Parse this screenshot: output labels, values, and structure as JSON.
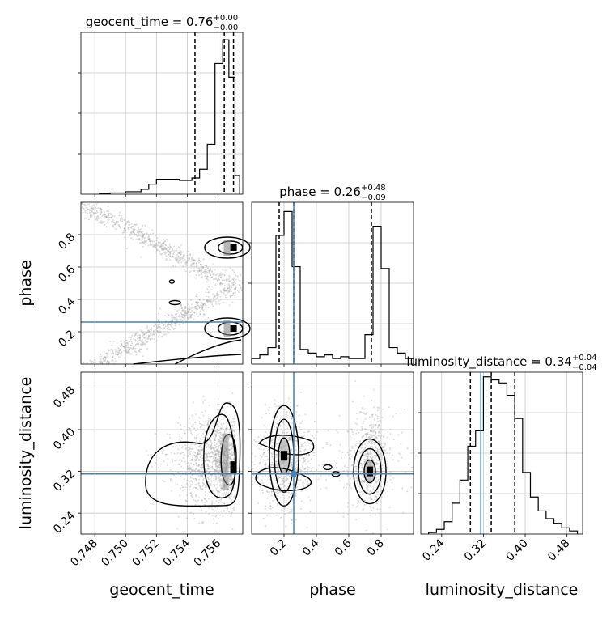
{
  "chart_data": {
    "type": "corner",
    "parameters": [
      "geocent_time",
      "phase",
      "luminosity_distance"
    ],
    "truth_color": "#4682b4",
    "truth_values": {
      "phase": 0.26,
      "luminosity_distance": 0.315
    },
    "grid": true,
    "panels": {
      "geocent_time_hist": {
        "title": "geocent_time = 0.76",
        "title_sup": "+0.00",
        "title_sub": "−0.00",
        "range": [
          0.7471,
          0.7576
        ],
        "quantile_lines": [
          0.7545,
          0.7564,
          0.757
        ],
        "bin_edges": [
          0.7483,
          0.749,
          0.75,
          0.751,
          0.7515,
          0.752,
          0.753,
          0.7535,
          0.7543,
          0.7548,
          0.7553,
          0.7558,
          0.7563,
          0.7567,
          0.7571,
          0.7574
        ],
        "bin_counts": [
          0.5,
          1,
          2,
          4,
          8,
          12,
          12,
          11,
          13,
          20,
          40,
          105,
          124,
          94,
          15
        ],
        "count_max": 130
      },
      "phase_hist": {
        "title": "phase = 0.26",
        "title_sup": "+0.48",
        "title_sub": "−0.09",
        "range": [
          0.0,
          1.0
        ],
        "quantile_lines": [
          0.17,
          0.26,
          0.74
        ],
        "bin_edges": [
          0.0,
          0.05,
          0.1,
          0.15,
          0.2,
          0.25,
          0.3,
          0.35,
          0.4,
          0.45,
          0.5,
          0.55,
          0.6,
          0.65,
          0.7,
          0.75,
          0.8,
          0.85,
          0.9,
          0.95,
          1.0
        ],
        "bin_counts": [
          3,
          5,
          9,
          70,
          83,
          53,
          8,
          6,
          4,
          5,
          3,
          4,
          3,
          3,
          16,
          75,
          52,
          9,
          6,
          3
        ],
        "count_max": 88
      },
      "luminosity_distance_hist": {
        "title": "luminosity_distance = 0.34",
        "title_sup": "+0.04",
        "title_sub": "−0.04",
        "range": [
          0.2,
          0.51
        ],
        "quantile_lines": [
          0.295,
          0.335,
          0.38
        ],
        "bin_edges": [
          0.215,
          0.23,
          0.245,
          0.26,
          0.275,
          0.29,
          0.305,
          0.32,
          0.335,
          0.35,
          0.365,
          0.38,
          0.395,
          0.41,
          0.425,
          0.44,
          0.455,
          0.47,
          0.485,
          0.5
        ],
        "bin_counts": [
          1,
          3,
          8,
          20,
          35,
          57,
          67,
          102,
          100,
          98,
          90,
          75,
          40,
          24,
          15,
          10,
          7,
          4,
          2
        ],
        "count_max": 105
      }
    },
    "axes": {
      "geocent_time": {
        "label": "geocent_time",
        "range": [
          0.7471,
          0.7576
        ],
        "ticks": [
          0.748,
          0.75,
          0.752,
          0.754,
          0.756
        ],
        "tick_labels": [
          "0.748",
          "0.750",
          "0.752",
          "0.754",
          "0.756"
        ]
      },
      "phase": {
        "label": "phase",
        "range": [
          0.0,
          1.0
        ],
        "ticks": [
          0.2,
          0.4,
          0.6,
          0.8
        ],
        "tick_labels": [
          "0.2",
          "0.4",
          "0.6",
          "0.8"
        ]
      },
      "luminosity_distance": {
        "label": "luminosity_distance",
        "range": [
          0.2,
          0.51
        ],
        "ticks": [
          0.24,
          0.32,
          0.4,
          0.48
        ],
        "tick_labels": [
          "0.24",
          "0.32",
          "0.40",
          "0.48"
        ]
      }
    },
    "modes_2d": {
      "geocent_time_vs_phase": [
        {
          "x": 0.757,
          "y": 0.72
        },
        {
          "x": 0.757,
          "y": 0.22
        }
      ],
      "geocent_time_vs_luminosity_distance": [
        {
          "x": 0.757,
          "y": 0.33
        }
      ],
      "phase_vs_luminosity_distance": [
        {
          "x": 0.2,
          "y": 0.35
        },
        {
          "x": 0.73,
          "y": 0.32
        }
      ]
    }
  }
}
